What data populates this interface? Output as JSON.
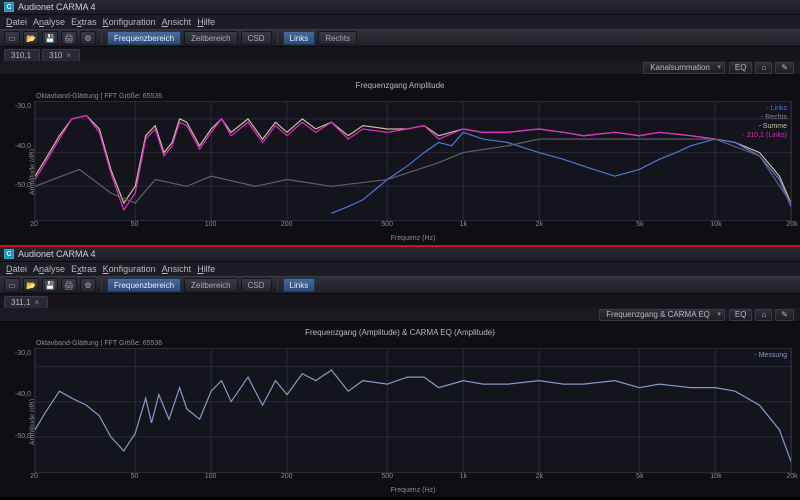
{
  "app": {
    "title": "Audionet CARMA 4",
    "icon_letter": "C"
  },
  "menu": [
    "Datei",
    "Analyse",
    "Extras",
    "Konfiguration",
    "Ansicht",
    "Hilfe"
  ],
  "menu_underline_idx": [
    0,
    1,
    1,
    0,
    0,
    0
  ],
  "toolbar_icons": [
    "new",
    "open",
    "save",
    "print",
    "options"
  ],
  "toolbar_glyphs": [
    "▭",
    "📂",
    "💾",
    "🖨",
    "⚙"
  ],
  "view_tabs_top": [
    {
      "label": "Frequenzbereich",
      "active": true
    },
    {
      "label": "Zeitbereich",
      "active": false
    },
    {
      "label": "CSD",
      "active": false
    }
  ],
  "channel_tabs_top": [
    {
      "label": "Links",
      "active": true
    },
    {
      "label": "Rechts",
      "active": false
    }
  ],
  "doc_tabs_top": [
    {
      "label": "310,1",
      "closable": false
    },
    {
      "label": "310",
      "closable": true
    }
  ],
  "mode_bar_top": {
    "select": "Kanalsummation",
    "chips": [
      "EQ",
      "⌂",
      "✎"
    ]
  },
  "chart_top": {
    "title": "Frequenzgang Amplitude",
    "subtitle": "Oktavband-Glättung    | FFT Größe: 65536",
    "x_label": "Frequenz (Hz)",
    "y_label": "Amplitude (dB)",
    "y_ticks": [
      "-30,0",
      "-40,0",
      "-50,0",
      "-90"
    ],
    "y_min": -60,
    "y_max": -25,
    "x_ticks": [
      20,
      50,
      100,
      200,
      500,
      "1k",
      "2k",
      "5k",
      "10k",
      "20k"
    ],
    "x_tick_vals": [
      20,
      50,
      100,
      200,
      500,
      1000,
      2000,
      5000,
      10000,
      20000
    ],
    "x_min": 20,
    "x_max": 20000,
    "legend": [
      {
        "label": "Links",
        "color": "#4a7ad8"
      },
      {
        "label": "Rechts",
        "color": "#888896"
      },
      {
        "label": "Summe",
        "color": "#c8c0a0"
      },
      {
        "label": "310,1 (Links)",
        "color": "#e828c8"
      }
    ],
    "colors": {
      "bg": "#14141c",
      "grid": "#2a2a38"
    },
    "series": [
      {
        "name": "summe",
        "color": "#c8c0a0",
        "data": [
          [
            20,
            -47
          ],
          [
            22,
            -42
          ],
          [
            25,
            -35
          ],
          [
            28,
            -30
          ],
          [
            32,
            -29
          ],
          [
            36,
            -33
          ],
          [
            40,
            -45
          ],
          [
            45,
            -55
          ],
          [
            50,
            -50
          ],
          [
            55,
            -35
          ],
          [
            60,
            -32
          ],
          [
            65,
            -40
          ],
          [
            70,
            -37
          ],
          [
            75,
            -30
          ],
          [
            80,
            -31
          ],
          [
            90,
            -38
          ],
          [
            100,
            -33
          ],
          [
            110,
            -30
          ],
          [
            120,
            -34
          ],
          [
            140,
            -30
          ],
          [
            160,
            -36
          ],
          [
            180,
            -31
          ],
          [
            200,
            -34
          ],
          [
            230,
            -30
          ],
          [
            260,
            -33
          ],
          [
            300,
            -31
          ],
          [
            350,
            -35
          ],
          [
            400,
            -32
          ],
          [
            500,
            -33
          ],
          [
            600,
            -33
          ],
          [
            700,
            -32
          ],
          [
            800,
            -35
          ],
          [
            1000,
            -33
          ],
          [
            1200,
            -34
          ],
          [
            1500,
            -34
          ],
          [
            2000,
            -33
          ],
          [
            2500,
            -34
          ],
          [
            3000,
            -35
          ],
          [
            4000,
            -34
          ],
          [
            5000,
            -35
          ],
          [
            6000,
            -34
          ],
          [
            8000,
            -35
          ],
          [
            10000,
            -36
          ],
          [
            12000,
            -37
          ],
          [
            15000,
            -40
          ],
          [
            18000,
            -47
          ],
          [
            20000,
            -55
          ]
        ]
      },
      {
        "name": "magenta",
        "color": "#e828c8",
        "data": [
          [
            20,
            -48
          ],
          [
            22,
            -43
          ],
          [
            25,
            -36
          ],
          [
            28,
            -30
          ],
          [
            32,
            -29
          ],
          [
            36,
            -34
          ],
          [
            40,
            -46
          ],
          [
            45,
            -57
          ],
          [
            50,
            -52
          ],
          [
            55,
            -36
          ],
          [
            60,
            -33
          ],
          [
            65,
            -41
          ],
          [
            70,
            -38
          ],
          [
            75,
            -31
          ],
          [
            80,
            -32
          ],
          [
            90,
            -39
          ],
          [
            100,
            -34
          ],
          [
            110,
            -30
          ],
          [
            120,
            -35
          ],
          [
            140,
            -31
          ],
          [
            160,
            -37
          ],
          [
            180,
            -32
          ],
          [
            200,
            -35
          ],
          [
            230,
            -31
          ],
          [
            260,
            -34
          ],
          [
            300,
            -31
          ],
          [
            350,
            -36
          ],
          [
            400,
            -33
          ],
          [
            500,
            -34
          ],
          [
            600,
            -33
          ],
          [
            700,
            -32
          ],
          [
            800,
            -36
          ],
          [
            1000,
            -33
          ],
          [
            1200,
            -34
          ],
          [
            1500,
            -34
          ],
          [
            2000,
            -33
          ],
          [
            2500,
            -34
          ],
          [
            3000,
            -35
          ],
          [
            4000,
            -34
          ],
          [
            5000,
            -35
          ],
          [
            6000,
            -34
          ],
          [
            8000,
            -35
          ],
          [
            10000,
            -36
          ],
          [
            12000,
            -37
          ],
          [
            15000,
            -41
          ],
          [
            18000,
            -48
          ],
          [
            20000,
            -56
          ]
        ]
      },
      {
        "name": "links",
        "color": "#4a7ad8",
        "data": [
          [
            300,
            -58
          ],
          [
            350,
            -56
          ],
          [
            400,
            -54
          ],
          [
            500,
            -48
          ],
          [
            600,
            -44
          ],
          [
            700,
            -40
          ],
          [
            800,
            -37
          ],
          [
            900,
            -38
          ],
          [
            1000,
            -34
          ],
          [
            1200,
            -36
          ],
          [
            1500,
            -37
          ],
          [
            2000,
            -40
          ],
          [
            2500,
            -42
          ],
          [
            3000,
            -44
          ],
          [
            4000,
            -47
          ],
          [
            5000,
            -45
          ],
          [
            6000,
            -42
          ],
          [
            7000,
            -40
          ],
          [
            8000,
            -38
          ],
          [
            10000,
            -36
          ],
          [
            12000,
            -37
          ],
          [
            15000,
            -41
          ],
          [
            18000,
            -48
          ],
          [
            20000,
            -56
          ]
        ]
      },
      {
        "name": "rechts",
        "color": "#606070",
        "data": [
          [
            20,
            -50
          ],
          [
            30,
            -45
          ],
          [
            40,
            -52
          ],
          [
            50,
            -55
          ],
          [
            60,
            -48
          ],
          [
            80,
            -50
          ],
          [
            100,
            -47
          ],
          [
            150,
            -50
          ],
          [
            200,
            -48
          ],
          [
            300,
            -50
          ],
          [
            500,
            -48
          ],
          [
            800,
            -43
          ],
          [
            1000,
            -40
          ],
          [
            1500,
            -38
          ],
          [
            2000,
            -36
          ],
          [
            3000,
            -36
          ],
          [
            5000,
            -36
          ],
          [
            8000,
            -36
          ],
          [
            10000,
            -36
          ],
          [
            15000,
            -41
          ],
          [
            20000,
            -55
          ]
        ]
      }
    ]
  },
  "view_tabs_bot": [
    {
      "label": "Frequenzbereich",
      "active": true
    },
    {
      "label": "Zeitbereich",
      "active": false
    },
    {
      "label": "CSD",
      "active": false
    }
  ],
  "channel_tabs_bot": [
    {
      "label": "Links",
      "active": true
    }
  ],
  "doc_tabs_bot": [
    {
      "label": "311,1",
      "closable": true
    }
  ],
  "mode_bar_bot": {
    "select": "Frequenzgang & CARMA EQ",
    "chips": [
      "EQ",
      "⌂",
      "✎"
    ]
  },
  "chart_bot": {
    "title": "Frequenzgang (Amplitude) & CARMA EQ (Amplitude)",
    "subtitle": "Oktavband-Glättung    | FFT Größe: 65536",
    "x_label": "Frequenz (Hz)",
    "y_label": "Amplitude (dB)",
    "y_ticks": [
      "-30,0",
      "-40,0",
      "-50,0",
      "-90"
    ],
    "y_min": -60,
    "y_max": -25,
    "x_ticks": [
      20,
      50,
      100,
      200,
      500,
      "1k",
      "2k",
      "5k",
      "10k",
      "20k"
    ],
    "x_tick_vals": [
      20,
      50,
      100,
      200,
      500,
      1000,
      2000,
      5000,
      10000,
      20000
    ],
    "x_min": 20,
    "x_max": 20000,
    "legend": [
      {
        "label": "Messung",
        "color": "#8898c8"
      }
    ],
    "colors": {
      "bg": "#14141c",
      "grid": "#2a2a38"
    },
    "series": [
      {
        "name": "messung",
        "color": "#8898c8",
        "data": [
          [
            20,
            -48
          ],
          [
            22,
            -43
          ],
          [
            25,
            -37
          ],
          [
            28,
            -39
          ],
          [
            32,
            -41
          ],
          [
            36,
            -44
          ],
          [
            40,
            -50
          ],
          [
            45,
            -54
          ],
          [
            50,
            -49
          ],
          [
            55,
            -39
          ],
          [
            58,
            -46
          ],
          [
            62,
            -38
          ],
          [
            68,
            -45
          ],
          [
            75,
            -36
          ],
          [
            80,
            -42
          ],
          [
            90,
            -45
          ],
          [
            100,
            -37
          ],
          [
            110,
            -34
          ],
          [
            120,
            -40
          ],
          [
            140,
            -33
          ],
          [
            160,
            -41
          ],
          [
            180,
            -34
          ],
          [
            200,
            -38
          ],
          [
            230,
            -32
          ],
          [
            260,
            -34
          ],
          [
            300,
            -31
          ],
          [
            350,
            -37
          ],
          [
            400,
            -34
          ],
          [
            500,
            -35
          ],
          [
            600,
            -33
          ],
          [
            700,
            -33
          ],
          [
            800,
            -36
          ],
          [
            1000,
            -34
          ],
          [
            1200,
            -35
          ],
          [
            1500,
            -35
          ],
          [
            2000,
            -34
          ],
          [
            2500,
            -35
          ],
          [
            3000,
            -35
          ],
          [
            4000,
            -34
          ],
          [
            5000,
            -36
          ],
          [
            6000,
            -35
          ],
          [
            8000,
            -36
          ],
          [
            10000,
            -36
          ],
          [
            12000,
            -37
          ],
          [
            15000,
            -41
          ],
          [
            18000,
            -48
          ],
          [
            20000,
            -57
          ]
        ]
      }
    ]
  }
}
